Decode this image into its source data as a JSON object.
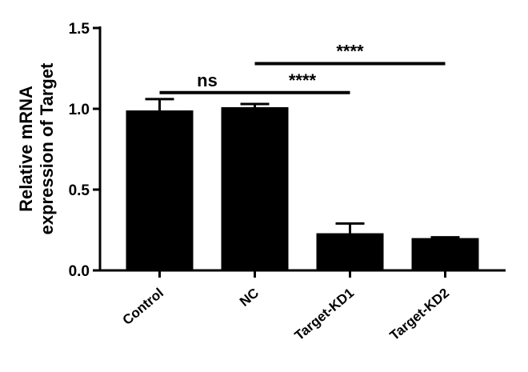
{
  "chart_data": {
    "type": "bar",
    "categories": [
      "Control",
      "NC",
      "Target-KD1",
      "Target-KD2"
    ],
    "values": [
      0.99,
      1.01,
      0.23,
      0.2
    ],
    "errors": [
      0.07,
      0.02,
      0.06,
      0.005
    ],
    "ylabel_lines": [
      "Relative mRNA",
      "expression of Target"
    ],
    "ylim": [
      0,
      1.5
    ],
    "yticks": [
      "0.0",
      "0.5",
      "1.0",
      "1.5"
    ],
    "ytick_values": [
      0,
      0.5,
      1.0,
      1.5
    ],
    "bar_color": "#000000",
    "grid": false,
    "legend": "none",
    "significance": [
      {
        "from": 0,
        "to": 1,
        "label": "ns",
        "y": 1.1
      },
      {
        "from": 1,
        "to": 2,
        "label": "****",
        "y": 1.1
      },
      {
        "from": 1,
        "to": 3,
        "label": "****",
        "y": 1.28
      }
    ]
  }
}
